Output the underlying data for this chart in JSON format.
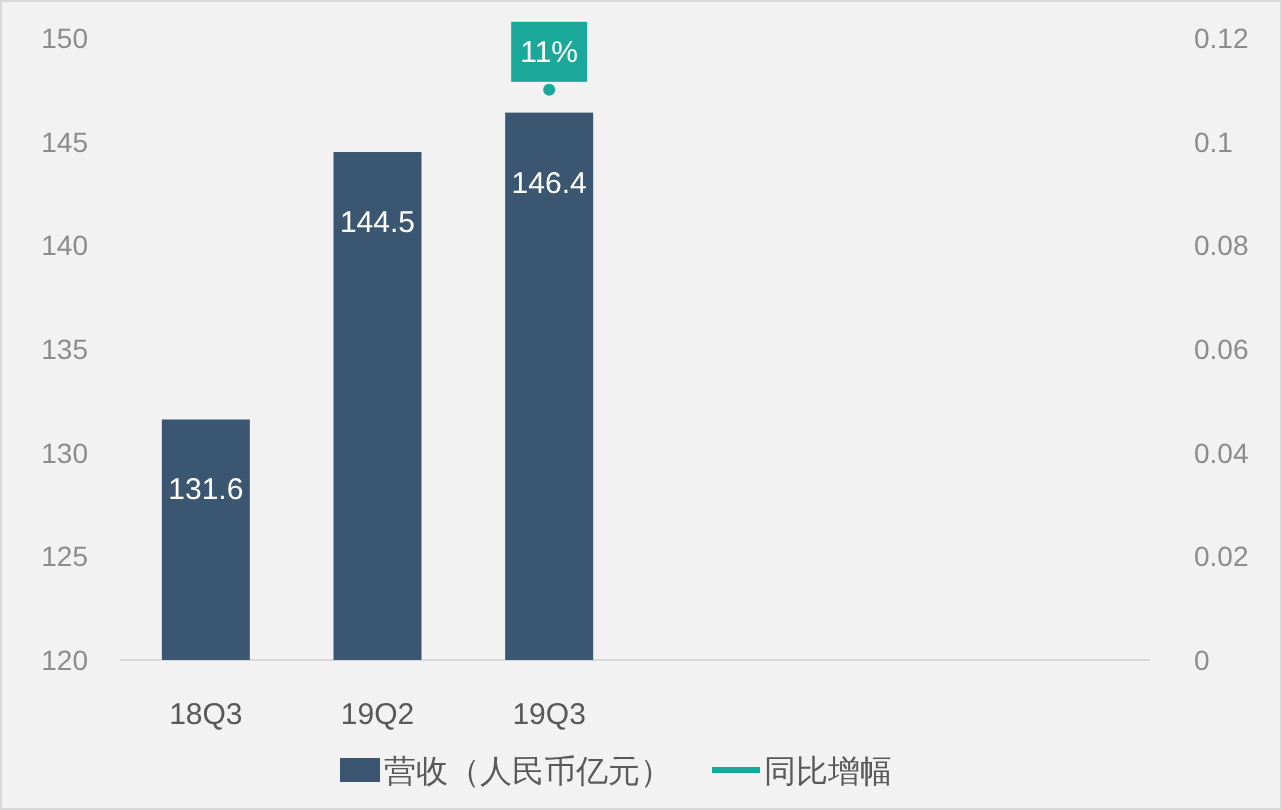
{
  "chart_data": {
    "type": "bar",
    "categories": [
      "18Q3",
      "19Q2",
      "19Q3",
      null,
      null,
      null
    ],
    "series": [
      {
        "name": "营收（人民币亿元）",
        "color": "#3b5670",
        "values": [
          131.6,
          144.5,
          146.4,
          null,
          null,
          null
        ],
        "value_labels": [
          "131.6",
          "144.5",
          "146.4",
          null,
          null,
          null
        ]
      },
      {
        "name": "同比增幅",
        "type": "line",
        "marker": "circle",
        "axis": "y2",
        "color": "#1aa89a",
        "values": [
          null,
          null,
          0.11,
          null,
          null,
          null
        ],
        "value_labels": [
          null,
          null,
          "11%",
          null,
          null,
          null
        ]
      }
    ],
    "ylim": [
      120,
      150
    ],
    "yticks": [
      120,
      125,
      130,
      135,
      140,
      145,
      150
    ],
    "y2lim": [
      0,
      0.12
    ],
    "y2ticks": [
      0,
      {
        "value": 0.02,
        "label": "0.02"
      },
      {
        "value": 0.04,
        "label": "0.04"
      },
      {
        "value": 0.06,
        "label": "0.06"
      },
      {
        "value": 0.08,
        "label": "0.08"
      },
      {
        "value": 0.1,
        "label": "0.1"
      },
      {
        "value": 0.12,
        "label": "0.12"
      }
    ],
    "legend": "bottom",
    "grid": false
  }
}
